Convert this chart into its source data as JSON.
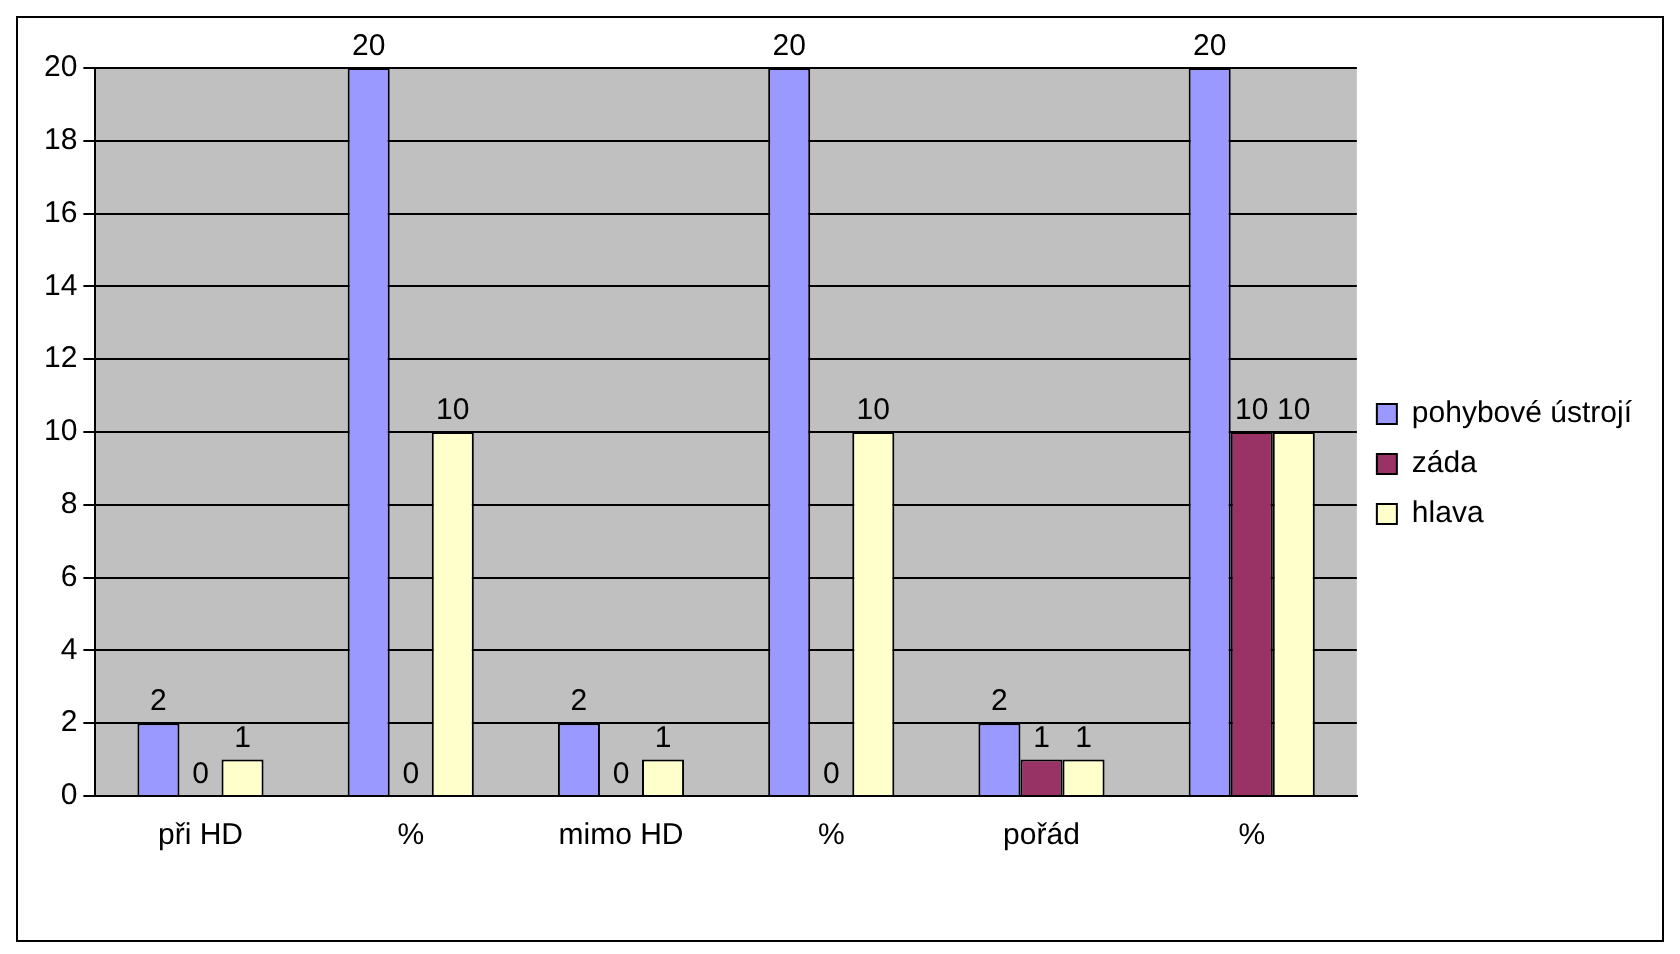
{
  "chart_data": {
    "type": "bar",
    "categories": [
      "při HD",
      "%",
      "mimo HD",
      "%",
      "pořád",
      "%"
    ],
    "series": [
      {
        "name": "pohybové ústrojí",
        "color": "#9999ff",
        "values": [
          2,
          20,
          2,
          20,
          2,
          20
        ]
      },
      {
        "name": "záda",
        "color": "#993366",
        "values": [
          0,
          0,
          0,
          0,
          1,
          10
        ]
      },
      {
        "name": "hlava",
        "color": "#ffffcc",
        "values": [
          1,
          10,
          1,
          10,
          1,
          10
        ]
      }
    ],
    "ylim": [
      0,
      20
    ],
    "yticks": [
      0,
      2,
      4,
      6,
      8,
      10,
      12,
      14,
      16,
      18,
      20
    ],
    "grid": "y",
    "legend": "right",
    "data_labels": true
  }
}
